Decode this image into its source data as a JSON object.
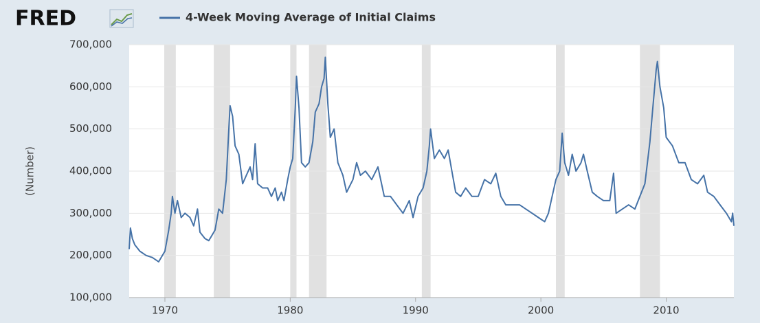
{
  "chart_data": {
    "type": "line",
    "logo": "FRED",
    "ylabel": "(Number)",
    "grid": true,
    "xlim": [
      1967.15,
      2015.4
    ],
    "ylim": [
      100000,
      700000
    ],
    "xticks": [
      1970,
      1980,
      1990,
      2000,
      2010
    ],
    "yticks": [
      {
        "value": 100000,
        "label": "100,000"
      },
      {
        "value": 200000,
        "label": "200,000"
      },
      {
        "value": 300000,
        "label": "300,000"
      },
      {
        "value": 400000,
        "label": "400,000"
      },
      {
        "value": 500000,
        "label": "500,000"
      },
      {
        "value": 600000,
        "label": "600,000"
      },
      {
        "value": 700000,
        "label": "700,000"
      }
    ],
    "recessions": [
      [
        1969.95,
        1970.87
      ],
      [
        1973.9,
        1975.2
      ],
      [
        1980.0,
        1980.5
      ],
      [
        1981.5,
        1982.9
      ],
      [
        1990.5,
        1991.2
      ],
      [
        2001.2,
        2001.9
      ],
      [
        2007.9,
        2009.5
      ]
    ],
    "recession_color": "#e1e1e1",
    "x": [
      1967.15,
      1967.25,
      1967.4,
      1967.6,
      1968.0,
      1968.5,
      1969.0,
      1969.5,
      1969.8,
      1970.0,
      1970.3,
      1970.5,
      1970.6,
      1970.8,
      1971.0,
      1971.3,
      1971.6,
      1972.0,
      1972.3,
      1972.6,
      1972.8,
      1973.2,
      1973.5,
      1973.8,
      1974.0,
      1974.3,
      1974.6,
      1974.9,
      1975.1,
      1975.2,
      1975.4,
      1975.6,
      1975.9,
      1976.2,
      1976.5,
      1976.8,
      1977.0,
      1977.2,
      1977.4,
      1977.8,
      1978.2,
      1978.5,
      1978.8,
      1979.0,
      1979.3,
      1979.5,
      1979.8,
      1980.0,
      1980.2,
      1980.4,
      1980.5,
      1980.7,
      1980.9,
      1981.2,
      1981.5,
      1981.8,
      1982.0,
      1982.3,
      1982.5,
      1982.7,
      1982.8,
      1983.0,
      1983.2,
      1983.5,
      1983.8,
      1984.2,
      1984.5,
      1985.0,
      1985.3,
      1985.6,
      1986.0,
      1986.5,
      1987.0,
      1987.5,
      1988.0,
      1988.5,
      1989.0,
      1989.5,
      1989.8,
      1990.2,
      1990.6,
      1990.9,
      1991.1,
      1991.2,
      1991.5,
      1991.9,
      1992.3,
      1992.6,
      1992.9,
      1993.2,
      1993.6,
      1994.0,
      1994.5,
      1995.0,
      1995.5,
      1996.0,
      1996.4,
      1996.8,
      1997.2,
      1997.8,
      1998.3,
      1998.8,
      1999.3,
      1999.8,
      2000.3,
      2000.6,
      2000.9,
      2001.2,
      2001.5,
      2001.7,
      2001.9,
      2002.2,
      2002.5,
      2002.8,
      2003.2,
      2003.4,
      2003.7,
      2004.1,
      2004.5,
      2005.0,
      2005.5,
      2005.8,
      2006.0,
      2006.5,
      2007.0,
      2007.5,
      2007.9,
      2008.3,
      2008.7,
      2008.9,
      2009.2,
      2009.3,
      2009.5,
      2009.8,
      2010.0,
      2010.5,
      2011.0,
      2011.5,
      2012.0,
      2012.5,
      2013.0,
      2013.3,
      2013.8,
      2014.3,
      2014.8,
      2015.2,
      2015.3,
      2015.4
    ],
    "series": [
      {
        "name": "4-Week Moving Average of Initial Claims",
        "color": "#4572a7",
        "values": [
          215000,
          265000,
          240000,
          225000,
          210000,
          200000,
          195000,
          185000,
          200000,
          210000,
          260000,
          300000,
          340000,
          300000,
          330000,
          290000,
          300000,
          290000,
          270000,
          310000,
          255000,
          240000,
          235000,
          250000,
          260000,
          310000,
          300000,
          380000,
          500000,
          555000,
          530000,
          460000,
          440000,
          370000,
          390000,
          410000,
          380000,
          465000,
          370000,
          360000,
          360000,
          340000,
          360000,
          330000,
          350000,
          330000,
          380000,
          410000,
          430000,
          550000,
          625000,
          550000,
          420000,
          410000,
          420000,
          470000,
          540000,
          560000,
          600000,
          620000,
          670000,
          560000,
          480000,
          500000,
          420000,
          390000,
          350000,
          380000,
          420000,
          390000,
          400000,
          380000,
          410000,
          340000,
          340000,
          320000,
          300000,
          330000,
          290000,
          340000,
          360000,
          400000,
          460000,
          500000,
          430000,
          450000,
          430000,
          450000,
          400000,
          350000,
          340000,
          360000,
          340000,
          340000,
          380000,
          370000,
          395000,
          340000,
          320000,
          320000,
          320000,
          310000,
          300000,
          290000,
          280000,
          300000,
          340000,
          380000,
          400000,
          490000,
          420000,
          390000,
          440000,
          400000,
          420000,
          440000,
          400000,
          350000,
          340000,
          330000,
          330000,
          395000,
          300000,
          310000,
          320000,
          310000,
          340000,
          370000,
          470000,
          540000,
          640000,
          660000,
          600000,
          550000,
          480000,
          460000,
          420000,
          420000,
          380000,
          370000,
          390000,
          350000,
          340000,
          320000,
          300000,
          280000,
          300000,
          270000
        ]
      }
    ]
  }
}
